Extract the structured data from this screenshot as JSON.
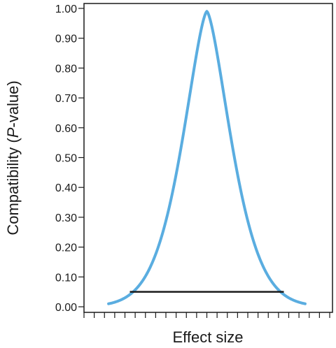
{
  "chart_data": {
    "type": "line",
    "title": "",
    "xlabel": "Effect size",
    "ylabel": {
      "prefix": "Compatibility (",
      "italic": "P",
      "suffix": "-value)"
    },
    "ylim": [
      0,
      1
    ],
    "yticks": [
      "0.00",
      "0.10",
      "0.20",
      "0.30",
      "0.40",
      "0.50",
      "0.60",
      "0.70",
      "0.80",
      "0.90",
      "1.00"
    ],
    "xlim": [
      -3,
      3
    ],
    "x_tick_count": 25,
    "x_tick_labels_shown": false,
    "grid": false,
    "legend": "none",
    "series": [
      {
        "kind": "p-value function",
        "color": "#5aade0",
        "x_range": [
          -2.4,
          2.4
        ],
        "peak_x": 0,
        "peak_y": 0.99,
        "end_y": 0.01
      }
    ],
    "interval": {
      "x_range": [
        -1.88,
        1.88
      ],
      "y": 0.05,
      "color": "#1a1a1a"
    }
  }
}
